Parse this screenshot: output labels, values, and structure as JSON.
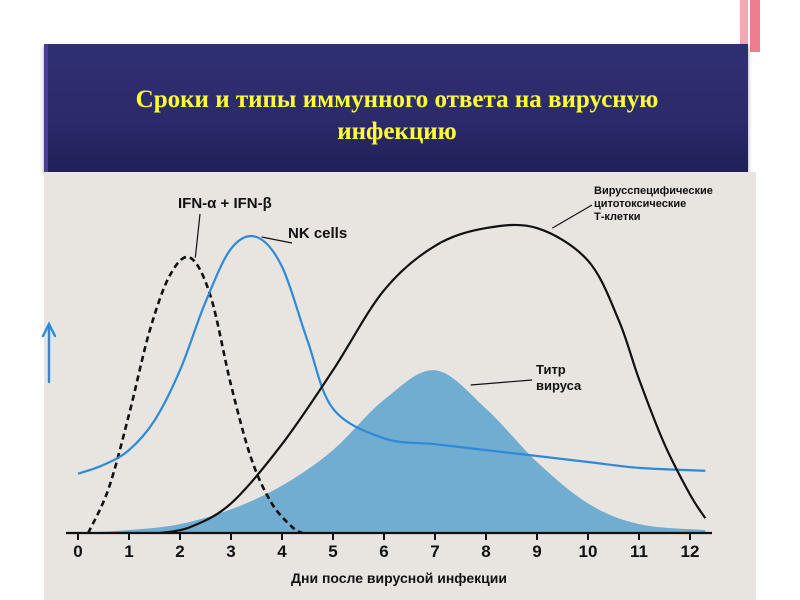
{
  "slide": {
    "title_line1": "Сроки и типы иммунного ответа на вирусную",
    "title_line2": "инфекцию",
    "accent": "#ffff33",
    "banner_color": "#2b2a6a"
  },
  "chart_data": {
    "type": "area",
    "title": "",
    "xlabel": "Дни после вирусной инфекции",
    "ylabel": "",
    "y_axis_arrow": "up-arrow-icon",
    "categories": [
      0,
      1,
      2,
      3,
      4,
      5,
      6,
      7,
      8,
      9,
      10,
      11,
      12
    ],
    "x_tick_labels": [
      "0",
      "1",
      "2",
      "3",
      "4",
      "5",
      "6",
      "7",
      "8",
      "9",
      "10",
      "11",
      "12"
    ],
    "xlim": [
      0,
      12.4
    ],
    "ylim": [
      0,
      1
    ],
    "grid": false,
    "series": [
      {
        "name": "Титр вируса",
        "style": "filled",
        "color": "#5ca2cf",
        "x": [
          0,
          1,
          2,
          3,
          4,
          5,
          6,
          7,
          8,
          9,
          10,
          11,
          12.3
        ],
        "y": [
          0,
          0.01,
          0.03,
          0.08,
          0.16,
          0.28,
          0.45,
          0.55,
          0.42,
          0.24,
          0.1,
          0.03,
          0.01
        ]
      },
      {
        "name": "IFN-α + IFN-β",
        "style": "dashed",
        "color": "#111111",
        "x": [
          0.2,
          0.6,
          1.0,
          1.4,
          1.8,
          2.2,
          2.6,
          3.0,
          3.4,
          3.8,
          4.2,
          4.4
        ],
        "y": [
          0,
          0.15,
          0.4,
          0.68,
          0.87,
          0.93,
          0.8,
          0.5,
          0.25,
          0.1,
          0.02,
          0
        ]
      },
      {
        "name": "NK cells",
        "style": "line",
        "color": "#2e8ad8",
        "x": [
          0,
          0.5,
          1.0,
          1.5,
          2.0,
          2.5,
          3.0,
          3.5,
          4.0,
          4.5,
          5.0,
          6.0,
          7.0,
          8.0,
          9.0,
          10.0,
          11.0,
          12.3
        ],
        "y": [
          0.2,
          0.23,
          0.28,
          0.38,
          0.55,
          0.78,
          0.96,
          1.0,
          0.9,
          0.65,
          0.42,
          0.32,
          0.3,
          0.28,
          0.26,
          0.24,
          0.22,
          0.21
        ]
      },
      {
        "name": "Вирусспецифические цитотоксические Т-клетки",
        "style": "line",
        "color": "#111111",
        "x": [
          1.6,
          2.2,
          3.0,
          4.0,
          5.0,
          6.0,
          7.0,
          8.0,
          9.0,
          10.0,
          10.6,
          11.0,
          11.5,
          12.0,
          12.3
        ],
        "y": [
          0,
          0.02,
          0.1,
          0.3,
          0.55,
          0.82,
          0.97,
          1.03,
          1.03,
          0.92,
          0.72,
          0.52,
          0.3,
          0.13,
          0.05
        ]
      }
    ],
    "annotations": [
      {
        "text": "IFN-α + IFN-β",
        "points_to": "IFN-α + IFN-β"
      },
      {
        "text": "NK cells",
        "points_to": "NK cells"
      },
      {
        "text": "Вирусспецифические цитотоксические Т-клетки",
        "points_to": "Вирусспецифические цитотоксические Т-клетки"
      },
      {
        "text": "Титр вируса",
        "points_to": "Титр вируса"
      }
    ],
    "labels": {
      "ifn": "IFN-α + IFN-β",
      "nk": "NK cells",
      "tcell_line1": "Вирусспецифические",
      "tcell_line2": "цитотоксические",
      "tcell_line3": "Т-клетки",
      "virus_line1": "Титр",
      "virus_line2": "вируса"
    }
  }
}
